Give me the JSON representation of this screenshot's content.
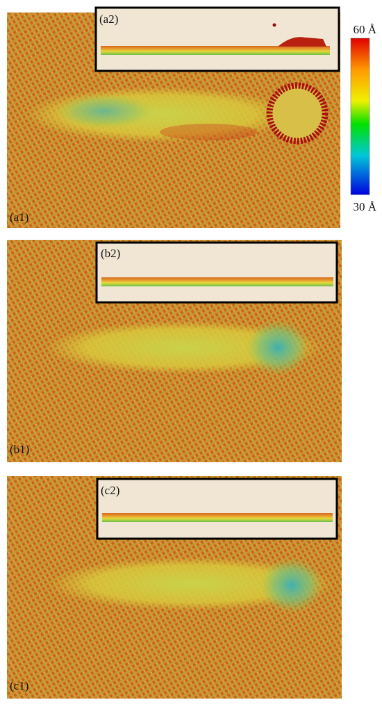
{
  "panels": [
    {
      "label": "(a1)",
      "inset_label": "(a2)"
    },
    {
      "label": "(b1)",
      "inset_label": "(b2)"
    },
    {
      "label": "(c1)",
      "inset_label": "(c2)"
    }
  ],
  "colorbar": {
    "max_label": "60 Å",
    "min_label": "30 Å"
  }
}
